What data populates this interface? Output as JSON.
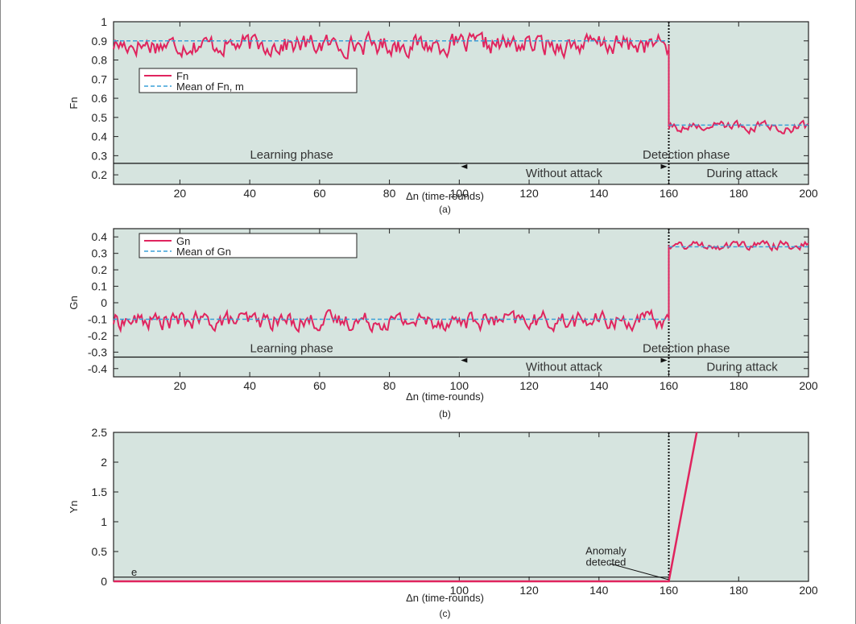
{
  "colors": {
    "plot_bg": "#d6e4df",
    "series_main": "#e0245e",
    "series_mean": "#3aa0d8",
    "axis": "#222222",
    "divider": "#111111"
  },
  "chart_data": [
    {
      "id": "a",
      "type": "line",
      "xlabel": "Δn (time-rounds)",
      "ylabel": "Fn",
      "caption": "(a)",
      "xlim": [
        1,
        200
      ],
      "ylim": [
        0.15,
        1.0
      ],
      "xticks": [
        20,
        40,
        60,
        80,
        100,
        120,
        140,
        160,
        180,
        200
      ],
      "yticks": [
        0.2,
        0.3,
        0.4,
        0.5,
        0.6,
        0.7,
        0.8,
        0.9,
        1
      ],
      "ytick_labels": [
        "0.2",
        "0.3",
        "0.4",
        "0.5",
        "0.6",
        "0.7",
        "0.8",
        "0.9",
        "1"
      ],
      "legend": [
        "Fn",
        "Mean of Fn, m"
      ],
      "phase_labels": {
        "learning": "Learning phase",
        "detection": "Detection phase",
        "without": "Without attack",
        "during": "During attack"
      },
      "phase_line_y": 0.26,
      "attack_x": 160,
      "series": [
        {
          "name": "Fn",
          "segments": [
            {
              "x_start": 1,
              "x_end": 160,
              "mean": 0.88,
              "amplitude": 0.06,
              "min": 0.8,
              "max": 0.99
            },
            {
              "x_start": 160,
              "x_end": 200,
              "mean": 0.45,
              "amplitude": 0.03,
              "min": 0.41,
              "max": 0.49
            }
          ]
        },
        {
          "name": "Mean of Fn, m",
          "segments": [
            {
              "x_start": 1,
              "x_end": 160,
              "value": 0.9
            },
            {
              "x_start": 160,
              "x_end": 200,
              "value": 0.46
            }
          ]
        }
      ]
    },
    {
      "id": "b",
      "type": "line",
      "xlabel": "Δn (time-rounds)",
      "ylabel": "Gn",
      "caption": "(b)",
      "xlim": [
        1,
        200
      ],
      "ylim": [
        -0.45,
        0.45
      ],
      "xticks": [
        20,
        40,
        60,
        80,
        100,
        120,
        140,
        160,
        180,
        200
      ],
      "yticks": [
        -0.4,
        -0.3,
        -0.2,
        -0.1,
        0,
        0.1,
        0.2,
        0.3,
        0.4
      ],
      "ytick_labels": [
        "-0.4",
        "-0.3",
        "-0.2",
        "-0.1",
        "0",
        "0.1",
        "0.2",
        "0.3",
        "0.4"
      ],
      "legend": [
        "Gn",
        "Mean of Gn"
      ],
      "phase_labels": {
        "learning": "Learning phase",
        "detection": "Detection phase",
        "without": "Without attack",
        "during": "During attack"
      },
      "phase_line_y": -0.33,
      "attack_x": 160,
      "series": [
        {
          "name": "Gn",
          "segments": [
            {
              "x_start": 1,
              "x_end": 160,
              "mean": -0.11,
              "amplitude": 0.06,
              "min": -0.19,
              "max": -0.01
            },
            {
              "x_start": 160,
              "x_end": 200,
              "mean": 0.35,
              "amplitude": 0.03,
              "min": 0.31,
              "max": 0.4
            }
          ]
        },
        {
          "name": "Mean of Gn",
          "segments": [
            {
              "x_start": 1,
              "x_end": 160,
              "value": -0.1
            },
            {
              "x_start": 160,
              "x_end": 200,
              "value": 0.34
            }
          ]
        }
      ]
    },
    {
      "id": "c",
      "type": "line",
      "xlabel": "Δn (time-rounds)",
      "ylabel": "Yn",
      "caption": "(c)",
      "xlim": [
        1,
        200
      ],
      "ylim": [
        0,
        2.5
      ],
      "xticks": [
        100,
        120,
        140,
        160,
        180,
        200
      ],
      "yticks": [
        0,
        0.5,
        1,
        1.5,
        2,
        2.5
      ],
      "ytick_labels": [
        "0",
        "0.5",
        "1",
        "1.5",
        "2",
        "2.5"
      ],
      "threshold_label": "e",
      "threshold_value": 0.07,
      "attack_x": 160,
      "annotation": {
        "lines": [
          "Anomaly",
          "detected"
        ],
        "x": 160,
        "y": 0
      },
      "series": [
        {
          "name": "Yn",
          "points": [
            [
              1,
              0
            ],
            [
              100,
              0
            ],
            [
              160,
              0
            ],
            [
              168,
              2.5
            ]
          ]
        }
      ]
    }
  ]
}
